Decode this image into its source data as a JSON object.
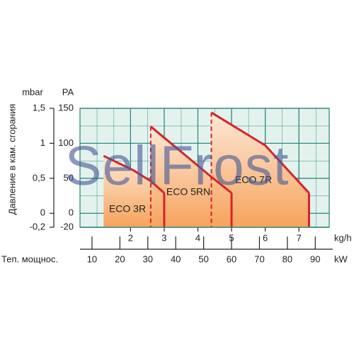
{
  "chart_data": {
    "type": "area",
    "watermark": "SellFrost",
    "y_label": "Давление в кам. сгорания",
    "x_label": "Теп. мощнос.",
    "x_unit": "kg/h",
    "x2_unit": "kW",
    "y_unit": "PA",
    "y2_unit": "mbar",
    "xlim": [
      0.5,
      7.9
    ],
    "xticks": [
      2,
      3,
      4,
      5,
      6,
      7
    ],
    "x2lim": [
      5.7,
      95
    ],
    "x2ticks": [
      10,
      20,
      30,
      40,
      50,
      60,
      70,
      80,
      90
    ],
    "ylim": [
      -20,
      150
    ],
    "yticks": [
      150,
      100,
      50,
      0,
      -20
    ],
    "y2lim": [
      -0.2,
      1.5
    ],
    "y2ticks": [
      {
        "value": 1.5,
        "label": "1,5"
      },
      1,
      {
        "value": 0.5,
        "label": "0,5"
      },
      0,
      {
        "value": -0.2,
        "label": "-0,2"
      }
    ],
    "grid": true,
    "grid_color": "#2f8c7c",
    "background": "#e4f2ee",
    "fill_top": "#fde8d6",
    "fill_bottom": "#f6a35c",
    "series": [
      {
        "name": "ECO 3R",
        "color": "#d4242a",
        "x": [
          1.2,
          2.1,
          2.6,
          3.0
        ],
        "values": [
          82,
          61,
          46,
          29
        ]
      },
      {
        "name": "ECO 5RN",
        "color": "#d4242a",
        "x": [
          2.6,
          3.4,
          4.4,
          5.0
        ],
        "values": [
          124,
          92,
          52,
          29
        ]
      },
      {
        "name": "ECO 7R",
        "color": "#d4242a",
        "x": [
          4.4,
          6.0,
          7.3
        ],
        "values": [
          144,
          97,
          29
        ]
      }
    ]
  }
}
